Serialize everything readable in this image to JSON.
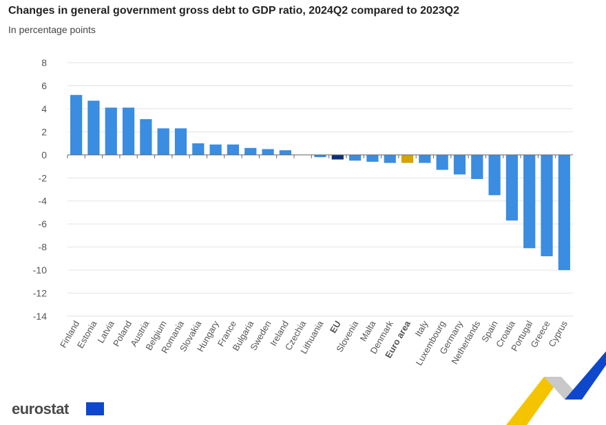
{
  "title": "Changes in general government gross debt to GDP ratio, 2024Q2 compared to 2023Q2",
  "subtitle": "In percentage points",
  "logo": "eurostat",
  "colors": {
    "country": "#3a8de0",
    "eu": "#0e2f7a",
    "euro_area": "#d4a500",
    "grid": "#e3e3e3"
  },
  "chart_data": {
    "type": "bar",
    "title": "Changes in general government gross debt to GDP ratio, 2024Q2 compared to 2023Q2",
    "ylabel": "In percentage points",
    "ylim": [
      -14,
      8
    ],
    "yticks": [
      8,
      6,
      4,
      2,
      0,
      -2,
      -4,
      -6,
      -8,
      -10,
      -12,
      -14
    ],
    "grid": true,
    "categories": [
      "Finland",
      "Estonia",
      "Latvia",
      "Poland",
      "Austria",
      "Belgium",
      "Romania",
      "Slovakia",
      "Hungary",
      "France",
      "Bulgaria",
      "Sweden",
      "Ireland",
      "Czechia",
      "Lithuania",
      "EU",
      "Slovenia",
      "Malta",
      "Denmark",
      "Euro area",
      "Italy",
      "Luxembourg",
      "Germany",
      "Netherlands",
      "Spain",
      "Croatia",
      "Portugal",
      "Greece",
      "Cyprus"
    ],
    "values": [
      5.2,
      4.7,
      4.1,
      4.1,
      3.1,
      2.3,
      2.3,
      1.0,
      0.9,
      0.9,
      0.6,
      0.5,
      0.4,
      0.0,
      -0.2,
      -0.4,
      -0.5,
      -0.6,
      -0.7,
      -0.7,
      -0.7,
      -1.3,
      -1.7,
      -2.1,
      -3.5,
      -5.7,
      -8.1,
      -8.8,
      -10.0
    ],
    "highlight": {
      "EU": "eu",
      "Euro area": "euro_area"
    }
  }
}
